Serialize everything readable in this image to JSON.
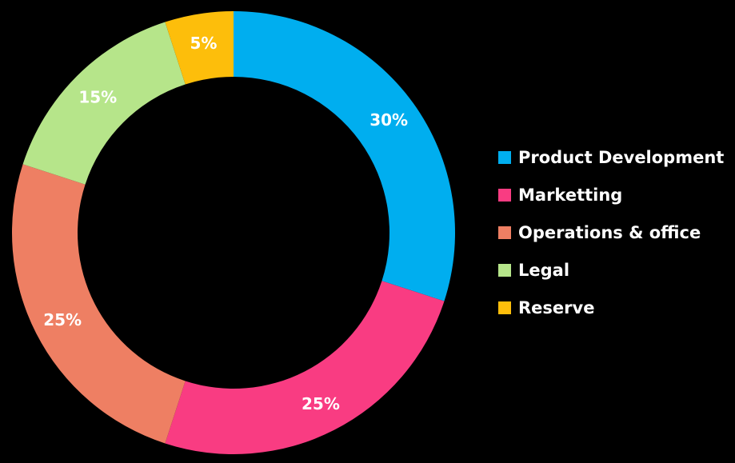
{
  "chart_data": {
    "type": "pie",
    "variant": "donut",
    "categories": [
      "Product Development",
      "Marketting",
      "Operations & office",
      "Legal",
      "Reserve"
    ],
    "values": [
      30,
      25,
      25,
      15,
      5
    ],
    "value_labels": [
      "30%",
      "25%",
      "25%",
      "15%",
      "5%"
    ],
    "colors": [
      "#00AEEF",
      "#F93C82",
      "#EE7F63",
      "#B6E58A",
      "#FDBE0B"
    ],
    "legend_position": "right",
    "start_angle": "top, clockwise",
    "title": ""
  },
  "legend": {
    "items": [
      {
        "label": "Product Development",
        "color": "#00AEEF"
      },
      {
        "label": "Marketting",
        "color": "#F93C82"
      },
      {
        "label": "Operations & office",
        "color": "#EE7F63"
      },
      {
        "label": "Legal",
        "color": "#B6E58A"
      },
      {
        "label": "Reserve",
        "color": "#FDBE0B"
      }
    ]
  },
  "background_color": "#000000"
}
